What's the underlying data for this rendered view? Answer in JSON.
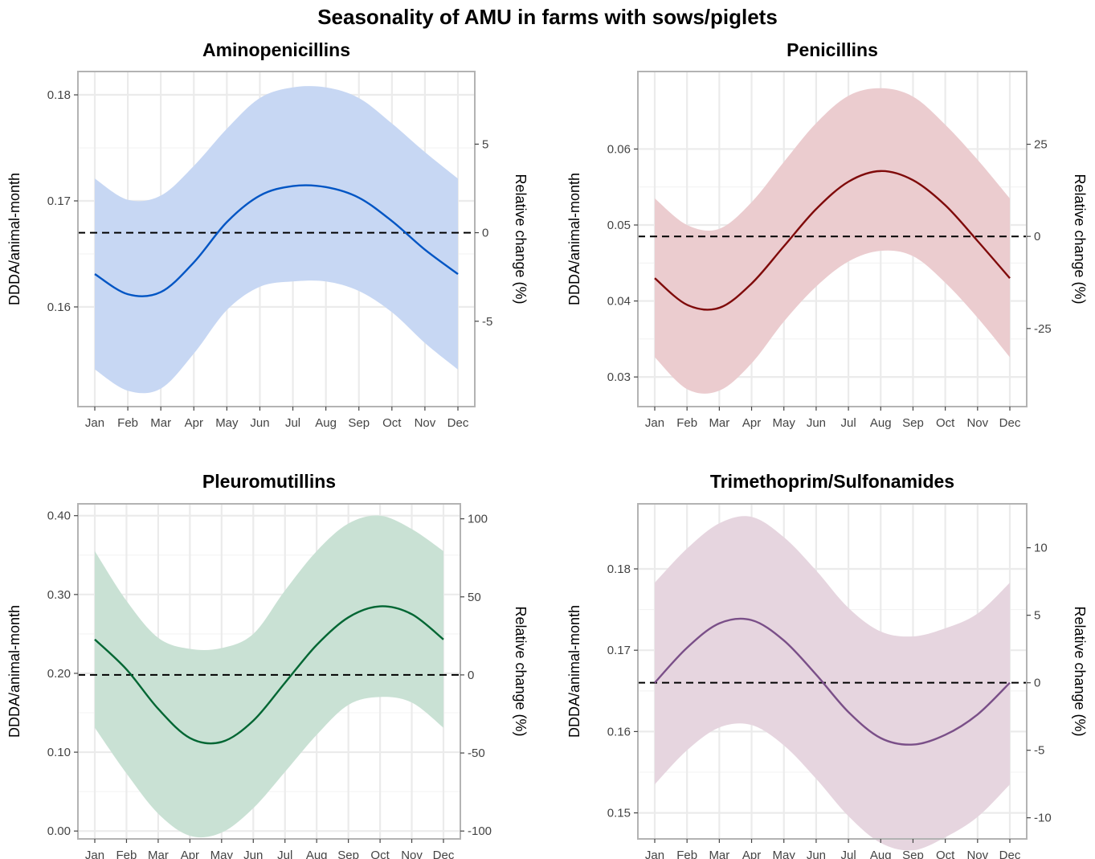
{
  "title": "Seasonality of AMU in farms with sows/piglets",
  "chart_data": [
    {
      "type": "line",
      "title": "Aminopenicillins",
      "ylabel": "DDDA/animal-month",
      "ylabel_right": "Relative change (%)",
      "color": "#0055c4",
      "band_color": "#c7d7f3",
      "categories": [
        "Jan",
        "Feb",
        "Mar",
        "Apr",
        "May",
        "Jun",
        "Jul",
        "Aug",
        "Sep",
        "Oct",
        "Nov",
        "Dec"
      ],
      "values": [
        0.1631,
        0.1612,
        0.1614,
        0.1642,
        0.168,
        0.1705,
        0.1714,
        0.1713,
        0.1703,
        0.1681,
        0.1654,
        0.1631
      ],
      "lower": [
        0.1541,
        0.1521,
        0.1523,
        0.1556,
        0.1597,
        0.1619,
        0.1624,
        0.1624,
        0.1615,
        0.1595,
        0.1566,
        0.1541
      ],
      "upper": [
        0.1721,
        0.1701,
        0.1705,
        0.1733,
        0.1768,
        0.1797,
        0.1807,
        0.1807,
        0.1797,
        0.1773,
        0.1746,
        0.1721
      ],
      "reference": 0.167,
      "ylim": [
        0.1506,
        0.1822
      ],
      "yticks": [
        0.16,
        0.17,
        0.18
      ],
      "ytick_labels": [
        "0.16",
        "0.17",
        "0.18"
      ],
      "y2ticks": [
        5,
        0,
        -5
      ],
      "y2tick_labels": [
        "5",
        "0",
        "-5"
      ]
    },
    {
      "type": "line",
      "title": "Penicillins",
      "ylabel": "DDDA/animal-month",
      "ylabel_right": "Relative change (%)",
      "color": "#7f0a0a",
      "band_color": "#ebcccf",
      "categories": [
        "Jan",
        "Feb",
        "Mar",
        "Apr",
        "May",
        "Jun",
        "Jul",
        "Aug",
        "Sep",
        "Oct",
        "Nov",
        "Dec"
      ],
      "values": [
        0.043,
        0.0395,
        0.0391,
        0.0423,
        0.0472,
        0.0521,
        0.0557,
        0.0571,
        0.0559,
        0.0526,
        0.0479,
        0.043
      ],
      "lower": [
        0.0326,
        0.0284,
        0.0282,
        0.0318,
        0.0373,
        0.0419,
        0.0452,
        0.0466,
        0.0459,
        0.0424,
        0.0378,
        0.0326
      ],
      "upper": [
        0.0535,
        0.05,
        0.0495,
        0.053,
        0.0583,
        0.0634,
        0.067,
        0.068,
        0.0669,
        0.0632,
        0.0586,
        0.0535
      ],
      "reference": 0.0485,
      "ylim": [
        0.0261,
        0.0702
      ],
      "yticks": [
        0.03,
        0.04,
        0.05,
        0.06
      ],
      "ytick_labels": [
        "0.03",
        "0.04",
        "0.05",
        "0.06"
      ],
      "y2ticks": [
        25,
        0,
        -25
      ],
      "y2tick_labels": [
        "25",
        "0",
        "-25"
      ]
    },
    {
      "type": "line",
      "title": "Pleuromutillins",
      "ylabel": "DDDA/animal-month",
      "ylabel_right": "Relative change (%)",
      "color": "#006633",
      "band_color": "#c9e1d4",
      "categories": [
        "Jan",
        "Feb",
        "Mar",
        "Apr",
        "May",
        "Jun",
        "Jul",
        "Aug",
        "Sep",
        "Oct",
        "Nov",
        "Dec"
      ],
      "values": [
        0.243,
        0.205,
        0.155,
        0.118,
        0.113,
        0.14,
        0.188,
        0.236,
        0.271,
        0.285,
        0.275,
        0.243
      ],
      "lower": [
        0.131,
        0.073,
        0.022,
        -0.006,
        -0.002,
        0.029,
        0.075,
        0.122,
        0.16,
        0.17,
        0.163,
        0.131
      ],
      "upper": [
        0.355,
        0.292,
        0.245,
        0.231,
        0.232,
        0.25,
        0.305,
        0.355,
        0.39,
        0.4,
        0.383,
        0.355
      ],
      "reference": 0.198,
      "ylim": [
        -0.01,
        0.415
      ],
      "yticks": [
        0.0,
        0.1,
        0.2,
        0.3,
        0.4
      ],
      "ytick_labels": [
        "0.00",
        "0.10",
        "0.20",
        "0.30",
        "0.40"
      ],
      "y2ticks": [
        100,
        50,
        0,
        -50,
        -100
      ],
      "y2tick_labels": [
        "100",
        "50",
        "0",
        "-50",
        "-100"
      ]
    },
    {
      "type": "line",
      "title": "Trimethoprim/Sulfonamides",
      "ylabel": "DDDA/animal-month",
      "ylabel_right": "Relative change (%)",
      "color": "#7a4f88",
      "band_color": "#e6d5df",
      "categories": [
        "Jan",
        "Feb",
        "Mar",
        "Apr",
        "May",
        "Jun",
        "Jul",
        "Aug",
        "Sep",
        "Oct",
        "Nov",
        "Dec"
      ],
      "values": [
        0.166,
        0.1703,
        0.1733,
        0.1737,
        0.1712,
        0.167,
        0.1624,
        0.1592,
        0.1584,
        0.1596,
        0.1621,
        0.166
      ],
      "lower": [
        0.1535,
        0.1577,
        0.1605,
        0.1608,
        0.1583,
        0.1542,
        0.1496,
        0.1463,
        0.1454,
        0.147,
        0.1495,
        0.1535
      ],
      "upper": [
        0.1783,
        0.1825,
        0.1856,
        0.1864,
        0.1839,
        0.1798,
        0.1752,
        0.1723,
        0.1717,
        0.1727,
        0.1745,
        0.1783
      ],
      "reference": 0.166,
      "ylim": [
        0.1468,
        0.188
      ],
      "yticks": [
        0.15,
        0.16,
        0.17,
        0.18
      ],
      "ytick_labels": [
        "0.15",
        "0.16",
        "0.17",
        "0.18"
      ],
      "y2ticks": [
        10,
        5,
        0,
        -5,
        -10
      ],
      "y2tick_labels": [
        "10",
        "5",
        "0",
        "-5",
        "-10"
      ]
    }
  ]
}
